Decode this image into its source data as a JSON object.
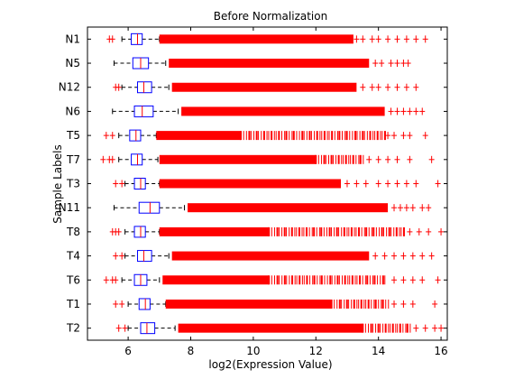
{
  "chart_data": {
    "type": "boxplot",
    "orientation": "horizontal",
    "title": "Before Normalization",
    "xlabel": "log2(Expression Value)",
    "ylabel": "Sample Labels",
    "xlim": [
      4.7,
      16.2
    ],
    "xticks": [
      6,
      8,
      10,
      12,
      14,
      16
    ],
    "colors": {
      "box": "#0000ff",
      "whisker": "#000000",
      "median": "#ff0000",
      "outlier": "#ff0000"
    },
    "categories": [
      "N1",
      "N5",
      "N12",
      "N6",
      "T5",
      "T7",
      "T3",
      "N11",
      "T8",
      "T4",
      "T6",
      "T1",
      "T2"
    ],
    "series": [
      {
        "name": "N1",
        "min": 5.8,
        "q1": 6.1,
        "median": 6.3,
        "q3": 6.45,
        "max": 7.0,
        "dense_outliers": [
          7.0,
          13.2
        ],
        "scattered_outliers": [
          5.4,
          5.5,
          13.3,
          13.5,
          13.8,
          14.0,
          14.3,
          14.6,
          14.9,
          15.2,
          15.5
        ]
      },
      {
        "name": "N5",
        "min": 5.55,
        "q1": 6.15,
        "median": 6.4,
        "q3": 6.65,
        "max": 7.2,
        "dense_outliers": [
          7.3,
          13.7
        ],
        "scattered_outliers": [
          13.9,
          14.1,
          14.4,
          14.6,
          14.8,
          14.95
        ]
      },
      {
        "name": "N12",
        "min": 5.8,
        "q1": 6.3,
        "median": 6.5,
        "q3": 6.75,
        "max": 7.3,
        "dense_outliers": [
          7.4,
          13.3
        ],
        "scattered_outliers": [
          5.6,
          5.7,
          13.5,
          13.8,
          14.0,
          14.3,
          14.6,
          14.9,
          15.2
        ]
      },
      {
        "name": "N6",
        "min": 5.5,
        "q1": 6.2,
        "median": 6.45,
        "q3": 6.8,
        "max": 7.6,
        "dense_outliers": [
          7.7,
          14.2
        ],
        "scattered_outliers": [
          14.4,
          14.6,
          14.8,
          15.0,
          15.2,
          15.4
        ]
      },
      {
        "name": "T5",
        "min": 5.7,
        "q1": 6.05,
        "median": 6.25,
        "q3": 6.4,
        "max": 6.9,
        "dense_outliers": [
          6.9,
          9.6
        ],
        "sparse_range": [
          9.6,
          14.2
        ],
        "scattered_outliers": [
          5.3,
          5.5,
          14.3,
          14.5,
          14.8,
          15.0,
          15.5
        ]
      },
      {
        "name": "T7",
        "min": 5.7,
        "q1": 6.1,
        "median": 6.3,
        "q3": 6.45,
        "max": 6.95,
        "dense_outliers": [
          7.0,
          12.0
        ],
        "sparse_range": [
          12.0,
          13.5
        ],
        "scattered_outliers": [
          5.2,
          5.4,
          5.5,
          13.7,
          14.0,
          14.3,
          14.6,
          15.0,
          15.7
        ]
      },
      {
        "name": "T3",
        "min": 5.9,
        "q1": 6.2,
        "median": 6.4,
        "q3": 6.55,
        "max": 7.0,
        "dense_outliers": [
          7.0,
          12.8
        ],
        "scattered_outliers": [
          5.6,
          5.8,
          13.0,
          13.3,
          13.6,
          14.0,
          14.3,
          14.6,
          14.9,
          15.2,
          15.9
        ]
      },
      {
        "name": "N11",
        "min": 5.55,
        "q1": 6.35,
        "median": 6.7,
        "q3": 7.0,
        "max": 7.8,
        "dense_outliers": [
          7.9,
          14.3
        ],
        "scattered_outliers": [
          14.5,
          14.7,
          14.9,
          15.1,
          15.4,
          15.6
        ]
      },
      {
        "name": "T8",
        "min": 5.9,
        "q1": 6.2,
        "median": 6.4,
        "q3": 6.55,
        "max": 7.0,
        "dense_outliers": [
          7.0,
          10.5
        ],
        "sparse_range": [
          10.5,
          14.8
        ],
        "scattered_outliers": [
          5.5,
          5.6,
          5.7,
          15.0,
          15.3,
          15.6,
          16.0
        ]
      },
      {
        "name": "T4",
        "min": 5.9,
        "q1": 6.3,
        "median": 6.5,
        "q3": 6.75,
        "max": 7.3,
        "dense_outliers": [
          7.4,
          13.7
        ],
        "scattered_outliers": [
          5.6,
          5.8,
          13.9,
          14.2,
          14.5,
          14.8,
          15.1,
          15.4,
          15.7
        ]
      },
      {
        "name": "T6",
        "min": 5.8,
        "q1": 6.2,
        "median": 6.4,
        "q3": 6.6,
        "max": 7.0,
        "dense_outliers": [
          7.1,
          10.5
        ],
        "sparse_range": [
          10.5,
          14.2
        ],
        "scattered_outliers": [
          5.3,
          5.5,
          5.6,
          14.5,
          14.8,
          15.1,
          15.4,
          15.9
        ]
      },
      {
        "name": "T1",
        "min": 6.0,
        "q1": 6.35,
        "median": 6.55,
        "q3": 6.7,
        "max": 7.2,
        "dense_outliers": [
          7.2,
          12.5
        ],
        "sparse_range": [
          12.5,
          14.3
        ],
        "scattered_outliers": [
          5.6,
          5.8,
          14.5,
          14.8,
          15.1,
          15.8
        ]
      },
      {
        "name": "T2",
        "min": 6.0,
        "q1": 6.4,
        "median": 6.6,
        "q3": 6.85,
        "max": 7.5,
        "dense_outliers": [
          7.6,
          13.5
        ],
        "sparse_range": [
          13.5,
          15.0
        ],
        "scattered_outliers": [
          5.7,
          5.9,
          15.2,
          15.5,
          15.8,
          16.0
        ]
      }
    ]
  }
}
